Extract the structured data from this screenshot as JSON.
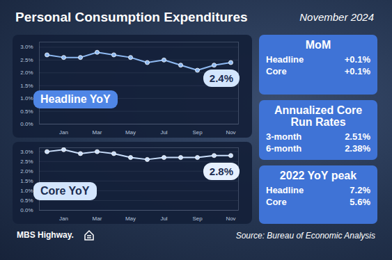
{
  "title": "Personal Consumption Expenditures",
  "date": "November 2024",
  "chart_data": [
    {
      "type": "line",
      "title": "Headline YoY",
      "annotation": "2.4%",
      "categories": [
        null,
        "Jan",
        null,
        "Mar",
        null,
        "May",
        null,
        "Jul",
        null,
        "Sep",
        null,
        "Nov"
      ],
      "values": [
        2.7,
        2.6,
        2.6,
        2.8,
        2.7,
        2.6,
        2.4,
        2.5,
        2.3,
        2.1,
        2.3,
        2.4
      ],
      "color": "#8fbaf2",
      "marker": "circle",
      "ylim": [
        0,
        3.2
      ],
      "yticks": [
        {
          "value": 0,
          "label": "0.0%"
        },
        {
          "value": 0.5,
          "label": "0.5%"
        },
        {
          "value": 1,
          "label": "1.0%"
        },
        {
          "value": 1.5,
          "label": "1.5%"
        },
        {
          "value": 2,
          "label": "2.0%"
        },
        {
          "value": 2.5,
          "label": "2.5%"
        },
        {
          "value": 3,
          "label": "3.0%"
        }
      ],
      "grid": true
    },
    {
      "type": "line",
      "title": "Core YoY",
      "annotation": "2.8%",
      "categories": [
        null,
        "Jan",
        null,
        "Mar",
        null,
        "May",
        null,
        "Jul",
        null,
        "Sep",
        null,
        "Nov"
      ],
      "values": [
        3.0,
        3.1,
        2.9,
        3.0,
        2.9,
        2.7,
        2.6,
        2.7,
        2.7,
        2.7,
        2.8,
        2.8
      ],
      "color": "#c9defa",
      "marker": "circle",
      "ylim": [
        0,
        3.2
      ],
      "yticks": [
        {
          "value": 0,
          "label": "0.0%"
        },
        {
          "value": 0.5,
          "label": "0.5%"
        },
        {
          "value": 1,
          "label": "1.0%"
        },
        {
          "value": 1.5,
          "label": "1.5%"
        },
        {
          "value": 2,
          "label": "2.0%"
        },
        {
          "value": 2.5,
          "label": "2.5%"
        },
        {
          "value": 3,
          "label": "3.0%"
        }
      ],
      "grid": true
    }
  ],
  "panels": [
    {
      "title": "MoM",
      "rows": [
        [
          "Headline",
          "+0.1%"
        ],
        [
          "Core",
          "+0.1%"
        ]
      ]
    },
    {
      "title": "Annualized Core Run Rates",
      "rows": [
        [
          "3-month",
          "2.51%"
        ],
        [
          "6-month",
          "2.38%"
        ]
      ]
    },
    {
      "title": "2022 YoY peak",
      "rows": [
        [
          "Headline",
          "7.2%"
        ],
        [
          "Core",
          "5.6%"
        ]
      ]
    }
  ],
  "footer": {
    "brand": "MBS Highway.",
    "source": "Source: Bureau of Economic Analysis"
  }
}
